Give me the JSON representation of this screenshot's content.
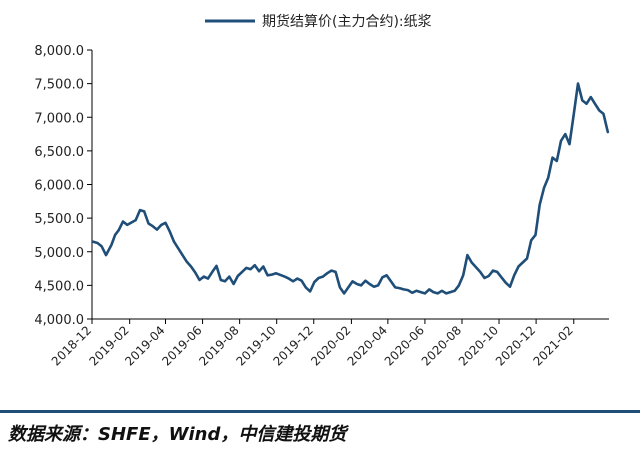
{
  "chart_data": {
    "type": "line",
    "title": "",
    "xlabel": "",
    "ylabel": "",
    "ylim": [
      4000,
      8000
    ],
    "y_ticks": [
      "4,000.0",
      "4,500.0",
      "5,000.0",
      "5,500.0",
      "6,000.0",
      "6,500.0",
      "7,000.0",
      "7,500.0",
      "8,000.0"
    ],
    "y_tick_values": [
      4000,
      4500,
      5000,
      5500,
      6000,
      6500,
      7000,
      7500,
      8000
    ],
    "x_ticks": [
      "2018-12",
      "2019-02",
      "2019-04",
      "2019-06",
      "2019-08",
      "2019-10",
      "2019-12",
      "2020-02",
      "2020-04",
      "2020-06",
      "2020-08",
      "2020-10",
      "2020-12",
      "2021-02"
    ],
    "x_range": [
      "2018-12-01",
      "2021-03-31"
    ],
    "grid": false,
    "legend_position": "top-center",
    "series": [
      {
        "name": "期货结算价(主力合约):纸浆",
        "color": "#1f4e79",
        "x": [
          "2018-12-03",
          "2018-12-10",
          "2018-12-17",
          "2018-12-24",
          "2019-01-02",
          "2019-01-08",
          "2019-01-14",
          "2019-01-21",
          "2019-01-28",
          "2019-02-11",
          "2019-02-18",
          "2019-02-25",
          "2019-03-04",
          "2019-03-11",
          "2019-03-18",
          "2019-03-25",
          "2019-04-01",
          "2019-04-08",
          "2019-04-15",
          "2019-04-22",
          "2019-04-29",
          "2019-05-06",
          "2019-05-13",
          "2019-05-20",
          "2019-05-27",
          "2019-06-03",
          "2019-06-10",
          "2019-06-17",
          "2019-06-24",
          "2019-07-01",
          "2019-07-08",
          "2019-07-15",
          "2019-07-22",
          "2019-07-29",
          "2019-08-05",
          "2019-08-12",
          "2019-08-19",
          "2019-08-26",
          "2019-09-02",
          "2019-09-09",
          "2019-09-16",
          "2019-09-23",
          "2019-09-30",
          "2019-10-14",
          "2019-10-21",
          "2019-10-28",
          "2019-11-04",
          "2019-11-11",
          "2019-11-18",
          "2019-11-25",
          "2019-12-02",
          "2019-12-09",
          "2019-12-16",
          "2019-12-23",
          "2019-12-30",
          "2020-01-06",
          "2020-01-13",
          "2020-01-20",
          "2020-02-03",
          "2020-02-10",
          "2020-02-17",
          "2020-02-24",
          "2020-03-02",
          "2020-03-09",
          "2020-03-16",
          "2020-03-23",
          "2020-03-30",
          "2020-04-06",
          "2020-04-13",
          "2020-04-20",
          "2020-04-27",
          "2020-05-04",
          "2020-05-11",
          "2020-05-18",
          "2020-05-25",
          "2020-06-01",
          "2020-06-08",
          "2020-06-15",
          "2020-06-22",
          "2020-06-29",
          "2020-07-06",
          "2020-07-13",
          "2020-07-20",
          "2020-07-27",
          "2020-08-03",
          "2020-08-10",
          "2020-08-17",
          "2020-08-24",
          "2020-08-31",
          "2020-09-07",
          "2020-09-14",
          "2020-09-21",
          "2020-09-28",
          "2020-10-12",
          "2020-10-19",
          "2020-10-26",
          "2020-11-02",
          "2020-11-09",
          "2020-11-16",
          "2020-11-23",
          "2020-11-30",
          "2020-12-07",
          "2020-12-14",
          "2020-12-21",
          "2020-12-28",
          "2021-01-04",
          "2021-01-11",
          "2021-01-18",
          "2021-01-25",
          "2021-02-01",
          "2021-02-08",
          "2021-02-15",
          "2021-02-22",
          "2021-03-01",
          "2021-03-08",
          "2021-03-15",
          "2021-03-22",
          "2021-03-29"
        ],
        "values": [
          5150,
          5130,
          5080,
          4950,
          5100,
          5250,
          5320,
          5450,
          5400,
          5470,
          5620,
          5600,
          5420,
          5380,
          5330,
          5400,
          5430,
          5300,
          5150,
          5050,
          4950,
          4850,
          4780,
          4690,
          4580,
          4630,
          4600,
          4700,
          4790,
          4580,
          4560,
          4630,
          4520,
          4640,
          4700,
          4760,
          4740,
          4800,
          4710,
          4780,
          4650,
          4660,
          4680,
          4630,
          4600,
          4560,
          4600,
          4570,
          4470,
          4410,
          4550,
          4610,
          4630,
          4680,
          4720,
          4700,
          4470,
          4380,
          4560,
          4520,
          4500,
          4570,
          4520,
          4480,
          4500,
          4620,
          4650,
          4560,
          4470,
          4460,
          4440,
          4430,
          4390,
          4420,
          4400,
          4380,
          4440,
          4400,
          4380,
          4420,
          4380,
          4400,
          4420,
          4500,
          4650,
          4950,
          4840,
          4770,
          4700,
          4610,
          4640,
          4720,
          4700,
          4540,
          4480,
          4650,
          4780,
          4840,
          4900,
          5170,
          5250,
          5700,
          5950,
          6100,
          6400,
          6350,
          6650,
          6750,
          6600,
          7050,
          7500,
          7250,
          7200,
          7300,
          7200,
          7100,
          7050,
          6780
        ]
      }
    ],
    "source": "数据来源：SHFE，Wind，中信建投期货"
  }
}
